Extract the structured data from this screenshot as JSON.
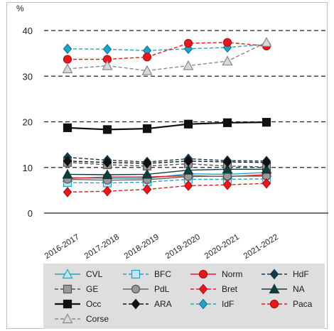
{
  "chart_data": {
    "type": "line",
    "title": "",
    "xlabel": "",
    "ylabel": "%",
    "ylim": [
      0,
      40
    ],
    "yticks": [
      "0",
      "10",
      "20",
      "30",
      "40"
    ],
    "grid": "dashed horizontal at 10, 20, 30, 40",
    "categories": [
      "2016-2017",
      "2017-2018",
      "2018-2019",
      "2019-2020",
      "2020-2021",
      "2021-2022"
    ],
    "legend_position": "bottom",
    "series": [
      {
        "name": "CVL",
        "color": "#1fa3c9",
        "dash": "solid",
        "marker": "triangle",
        "values": [
          7.8,
          7.6,
          7.6,
          8.6,
          8.5,
          8.9
        ]
      },
      {
        "name": "BFC",
        "color": "#1fa3c9",
        "dash": "dashed",
        "marker": "square",
        "values": [
          6.7,
          6.6,
          6.8,
          7.4,
          7.4,
          7.5
        ]
      },
      {
        "name": "Norm",
        "color": "#e8191e",
        "dash": "solid",
        "marker": "circle",
        "values": [
          7.6,
          7.9,
          7.9,
          8.2,
          8.0,
          8.4
        ]
      },
      {
        "name": "HdF",
        "color": "#15384a",
        "dash": "dashed",
        "marker": "diamond",
        "values": [
          12.2,
          11.6,
          11.2,
          11.9,
          11.5,
          11.4
        ]
      },
      {
        "name": "GE",
        "color": "#555555",
        "dash": "dashed",
        "marker": "square-gray",
        "values": [
          11.1,
          10.6,
          10.3,
          10.8,
          10.3,
          10.1
        ]
      },
      {
        "name": "PdL",
        "color": "#666666",
        "dash": "solid",
        "marker": "circle-gray",
        "values": [
          7.4,
          7.2,
          7.3,
          8.0,
          8.1,
          8.1
        ]
      },
      {
        "name": "Bret",
        "color": "#e8191e",
        "dash": "dashed",
        "marker": "diamond-red",
        "values": [
          4.6,
          4.8,
          5.2,
          6.0,
          6.2,
          6.5
        ]
      },
      {
        "name": "NA",
        "color": "#0f3d3e",
        "dash": "solid",
        "marker": "triangle-dark",
        "values": [
          8.5,
          8.4,
          8.5,
          9.4,
          9.6,
          9.6
        ]
      },
      {
        "name": "Occ",
        "color": "#111111",
        "dash": "solid",
        "marker": "square-black",
        "values": [
          18.7,
          18.3,
          18.5,
          19.5,
          19.8,
          19.9
        ]
      },
      {
        "name": "ARA",
        "color": "#111111",
        "dash": "dashed",
        "marker": "diamond-black",
        "values": [
          11.4,
          11.1,
          10.9,
          11.4,
          11.2,
          11.1
        ]
      },
      {
        "name": "IdF",
        "color": "#1fa3c9",
        "dash": "dashed",
        "marker": "diamond-cyan",
        "values": [
          36.0,
          35.9,
          35.6,
          36.0,
          36.3,
          37.0
        ]
      },
      {
        "name": "Paca",
        "color": "#e8191e",
        "dash": "dashed",
        "marker": "circle-red",
        "values": [
          33.7,
          33.7,
          34.2,
          37.2,
          37.4,
          36.6
        ]
      },
      {
        "name": "Corse",
        "color": "#888888",
        "dash": "dashed",
        "marker": "triangle-gray",
        "values": [
          31.6,
          32.3,
          31.2,
          32.3,
          33.3,
          37.4
        ]
      }
    ]
  }
}
